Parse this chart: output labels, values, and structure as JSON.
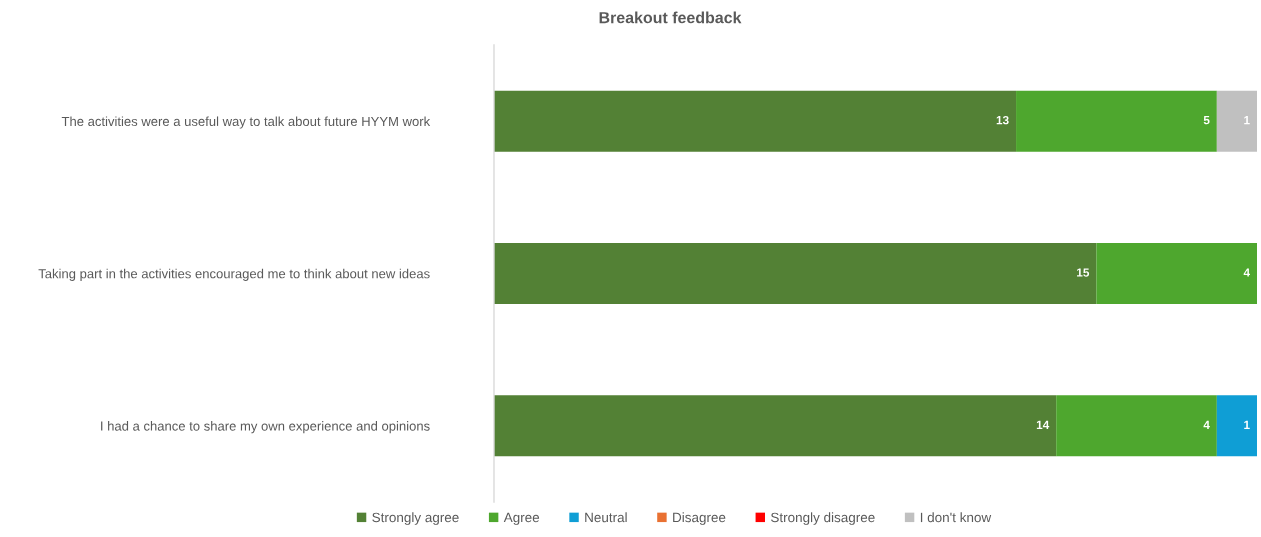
{
  "chart_data": {
    "type": "bar",
    "orientation": "horizontal",
    "stacked": true,
    "title": "Breakout feedback",
    "categories": [
      "The activities were a useful way to talk about future HYYM work",
      "Taking part in the activities encouraged me to think about new ideas",
      "I had a chance to share my own experience and opinions"
    ],
    "series": [
      {
        "name": "Strongly agree",
        "color": "#538135",
        "values": [
          13,
          15,
          14
        ]
      },
      {
        "name": "Agree",
        "color": "#4ea72e",
        "values": [
          5,
          4,
          4
        ]
      },
      {
        "name": "Neutral",
        "color": "#0f9ed5",
        "values": [
          null,
          null,
          1
        ]
      },
      {
        "name": "Disagree",
        "color": "#e97132",
        "values": [
          null,
          null,
          null
        ]
      },
      {
        "name": "Strongly disagree",
        "color": "#ff0000",
        "values": [
          null,
          null,
          null
        ]
      },
      {
        "name": "I don't know",
        "color": "#c0c0c0",
        "values": [
          1,
          null,
          null
        ]
      }
    ],
    "xlim": [
      0,
      19
    ],
    "tick_labels": "y",
    "data_labels": true,
    "legend": "bottom"
  }
}
